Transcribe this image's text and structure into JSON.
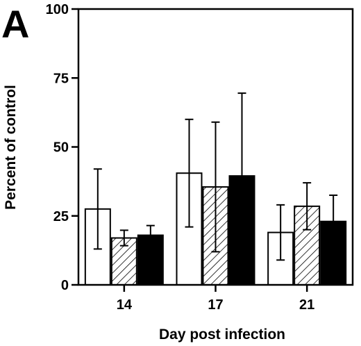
{
  "panel_label": "A",
  "chart_data": {
    "type": "bar",
    "xlabel": "Day post infection",
    "ylabel": "Percent of control",
    "ylim": [
      0,
      100
    ],
    "yticks": [
      0,
      25,
      50,
      75,
      100
    ],
    "grid": false,
    "legend": "none",
    "categories": [
      "14",
      "17",
      "21"
    ],
    "series": [
      {
        "fill": "white",
        "values": [
          27.5,
          40.5,
          19
        ],
        "errors": [
          14.5,
          19.5,
          10
        ]
      },
      {
        "fill": "hatched",
        "values": [
          17,
          35.5,
          28.5
        ],
        "errors": [
          2.8,
          23.5,
          8.5
        ]
      },
      {
        "fill": "black",
        "values": [
          18,
          39.5,
          23
        ],
        "errors": [
          3.5,
          30,
          9.5
        ]
      }
    ]
  }
}
